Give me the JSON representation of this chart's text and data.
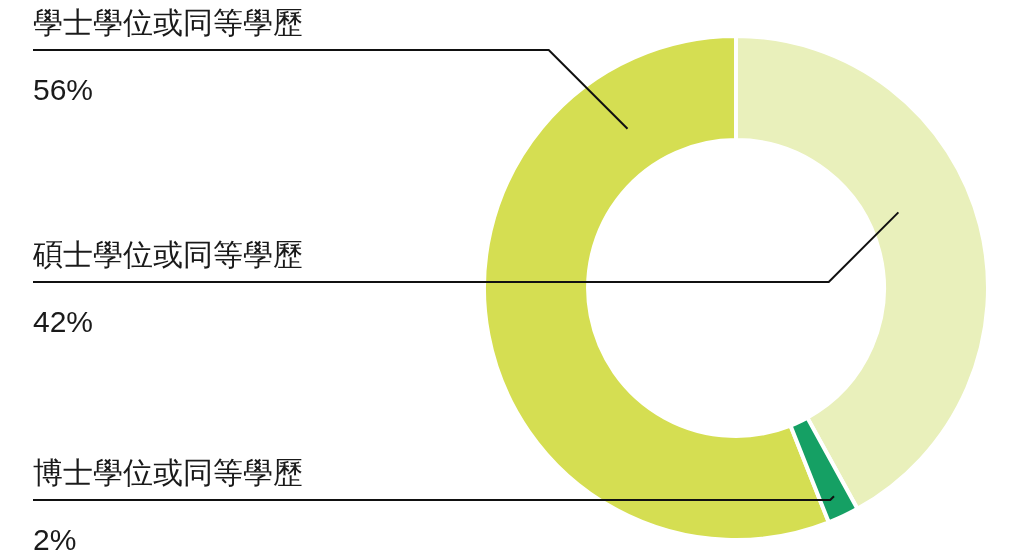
{
  "chart_data": {
    "type": "donut",
    "categories": [
      "學士學位或同等學歷",
      "碩士學位或同等學歷",
      "博士學位或同等學歷"
    ],
    "values": [
      56,
      42,
      2
    ],
    "colors": [
      "#d5de52",
      "#e9f0bb",
      "#15a064"
    ],
    "value_labels": [
      "56%",
      "42%",
      "2%"
    ]
  }
}
